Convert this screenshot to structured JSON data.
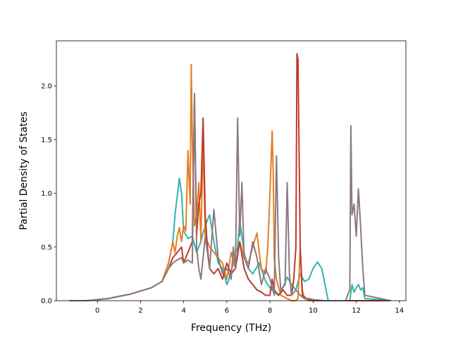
{
  "chart_data": {
    "type": "line",
    "title": "",
    "xlabel": "Frequency (THz)",
    "ylabel": "Partial Density of States",
    "xlim": [
      -1.9,
      14.3
    ],
    "ylim": [
      0,
      2.42
    ],
    "xticks": [
      0,
      2,
      4,
      6,
      8,
      10,
      12,
      14
    ],
    "xtick_labels": [
      "0",
      "2",
      "4",
      "6",
      "8",
      "10",
      "12",
      "14"
    ],
    "yticks": [
      0.0,
      0.5,
      1.0,
      1.5,
      2.0
    ],
    "ytick_labels": [
      "0.0",
      "0.5",
      "1.0",
      "1.5",
      "2.0"
    ],
    "grid": false,
    "legend": "none",
    "series": [
      {
        "color": "#2fb5b0",
        "x": [
          -1.3,
          -0.5,
          0,
          0.5,
          1,
          1.5,
          2,
          2.5,
          3,
          3.3,
          3.5,
          3.6,
          3.8,
          3.9,
          4.0,
          4.2,
          4.4,
          4.6,
          4.8,
          5.0,
          5.2,
          5.4,
          5.6,
          5.8,
          6.0,
          6.1,
          6.3,
          6.5,
          6.6,
          6.8,
          7.0,
          7.2,
          7.5,
          7.8,
          8.0,
          8.2,
          8.4,
          8.6,
          8.8,
          9.0,
          9.2,
          9.4,
          9.6,
          9.8,
          10.0,
          10.2,
          10.4,
          10.6,
          10.7,
          11.0,
          11.7,
          11.8,
          11.9,
          12.0,
          12.1,
          12.2,
          12.3,
          12.4,
          13.6
        ],
        "values": [
          0,
          0,
          0.01,
          0.02,
          0.04,
          0.06,
          0.09,
          0.12,
          0.18,
          0.35,
          0.55,
          0.8,
          1.14,
          1.0,
          0.65,
          0.58,
          0.6,
          0.45,
          0.55,
          0.7,
          0.8,
          0.55,
          0.35,
          0.3,
          0.15,
          0.2,
          0.35,
          0.5,
          0.75,
          0.45,
          0.3,
          0.25,
          0.35,
          0.18,
          0.12,
          0.08,
          0.05,
          0.12,
          0.22,
          0.15,
          0.1,
          0.25,
          0.18,
          0.2,
          0.3,
          0.36,
          0.3,
          0.1,
          0,
          0,
          0,
          0.15,
          0.08,
          0.12,
          0.15,
          0.1,
          0.12,
          0.02,
          0
        ]
      },
      {
        "color": "#e67e22",
        "x": [
          -1.3,
          -0.5,
          0,
          0.5,
          1,
          1.5,
          2,
          2.5,
          3,
          3.3,
          3.5,
          3.6,
          3.7,
          3.8,
          3.9,
          4.0,
          4.1,
          4.2,
          4.3,
          4.35,
          4.4,
          4.5,
          4.6,
          4.7,
          4.8,
          4.9,
          5.0,
          5.2,
          5.4,
          5.6,
          5.8,
          6.0,
          6.2,
          6.4,
          6.6,
          6.8,
          7.0,
          7.2,
          7.4,
          7.5,
          7.6,
          7.8,
          7.9,
          8.0,
          8.1,
          8.15,
          8.2,
          8.3,
          8.5,
          8.8,
          9.0,
          9.2,
          9.3,
          9.4,
          9.5,
          9.6,
          9.8,
          10.0,
          13.6
        ],
        "values": [
          0,
          0,
          0.01,
          0.02,
          0.04,
          0.06,
          0.09,
          0.12,
          0.18,
          0.35,
          0.55,
          0.45,
          0.6,
          0.68,
          0.55,
          0.7,
          0.65,
          1.4,
          0.9,
          2.2,
          1.5,
          0.7,
          0.8,
          1.1,
          0.55,
          1.5,
          0.6,
          0.5,
          0.45,
          0.4,
          0.35,
          0.2,
          0.45,
          0.3,
          0.55,
          0.4,
          0.35,
          0.5,
          0.63,
          0.45,
          0.3,
          0.25,
          0.5,
          1.0,
          1.58,
          1.2,
          0.4,
          0.2,
          0.05,
          0.02,
          0.0,
          0.0,
          0.02,
          0.5,
          0.1,
          0.02,
          0,
          0,
          0
        ]
      },
      {
        "color": "#c0392b",
        "x": [
          -1.3,
          -0.5,
          0,
          0.5,
          1,
          1.5,
          2,
          2.5,
          3,
          3.3,
          3.5,
          3.7,
          3.9,
          4.0,
          4.2,
          4.4,
          4.5,
          4.6,
          4.7,
          4.8,
          4.9,
          5.0,
          5.1,
          5.2,
          5.4,
          5.6,
          5.8,
          6.0,
          6.2,
          6.4,
          6.6,
          6.8,
          7.0,
          7.2,
          7.4,
          7.6,
          7.8,
          8.0,
          8.1,
          8.2,
          8.4,
          8.6,
          8.8,
          9.0,
          9.1,
          9.2,
          9.25,
          9.3,
          9.4,
          9.5,
          9.7,
          10.0,
          13.6
        ],
        "values": [
          0,
          0,
          0.01,
          0.02,
          0.04,
          0.06,
          0.09,
          0.12,
          0.18,
          0.3,
          0.4,
          0.45,
          0.5,
          0.35,
          0.45,
          0.55,
          1.9,
          0.6,
          0.9,
          1.0,
          1.7,
          0.8,
          0.5,
          0.3,
          0.25,
          0.3,
          0.2,
          0.35,
          0.25,
          0.3,
          0.55,
          0.3,
          0.2,
          0.15,
          0.1,
          0.08,
          0.05,
          0.05,
          0.2,
          0.1,
          0.05,
          0.1,
          0.05,
          0.05,
          0.2,
          0.5,
          2.3,
          2.25,
          0.5,
          0.05,
          0.02,
          0.0,
          0
        ]
      },
      {
        "color": "#8a7a80",
        "x": [
          -1.3,
          -0.5,
          0,
          0.5,
          1,
          1.5,
          2,
          2.5,
          3,
          3.3,
          3.5,
          3.7,
          3.9,
          4.0,
          4.2,
          4.4,
          4.5,
          4.6,
          4.7,
          4.8,
          5.0,
          5.2,
          5.4,
          5.6,
          5.8,
          6.0,
          6.2,
          6.3,
          6.4,
          6.5,
          6.6,
          6.7,
          6.8,
          7.0,
          7.2,
          7.4,
          7.6,
          7.8,
          8.0,
          8.2,
          8.3,
          8.4,
          8.5,
          8.7,
          8.8,
          8.9,
          9.0,
          9.2,
          9.4,
          9.6,
          9.8,
          10.0,
          10.5,
          11.5,
          11.7,
          11.75,
          11.8,
          11.9,
          12.0,
          12.1,
          12.2,
          12.3,
          12.4,
          13.6
        ],
        "values": [
          0,
          0,
          0.01,
          0.02,
          0.04,
          0.06,
          0.09,
          0.12,
          0.18,
          0.3,
          0.35,
          0.38,
          0.4,
          0.35,
          0.38,
          0.35,
          1.93,
          0.5,
          0.3,
          0.2,
          0.6,
          0.3,
          0.85,
          0.4,
          0.25,
          0.3,
          0.2,
          0.5,
          0.3,
          1.7,
          0.6,
          1.1,
          0.4,
          0.3,
          0.55,
          0.4,
          0.15,
          0.3,
          0.2,
          0.05,
          1.35,
          0.4,
          0.1,
          0.15,
          1.1,
          0.25,
          0.05,
          0.1,
          0.05,
          0.02,
          0.02,
          0.01,
          0,
          0,
          0.1,
          1.63,
          0.8,
          0.9,
          0.6,
          1.04,
          0.7,
          0.3,
          0.05,
          0
        ]
      }
    ]
  }
}
